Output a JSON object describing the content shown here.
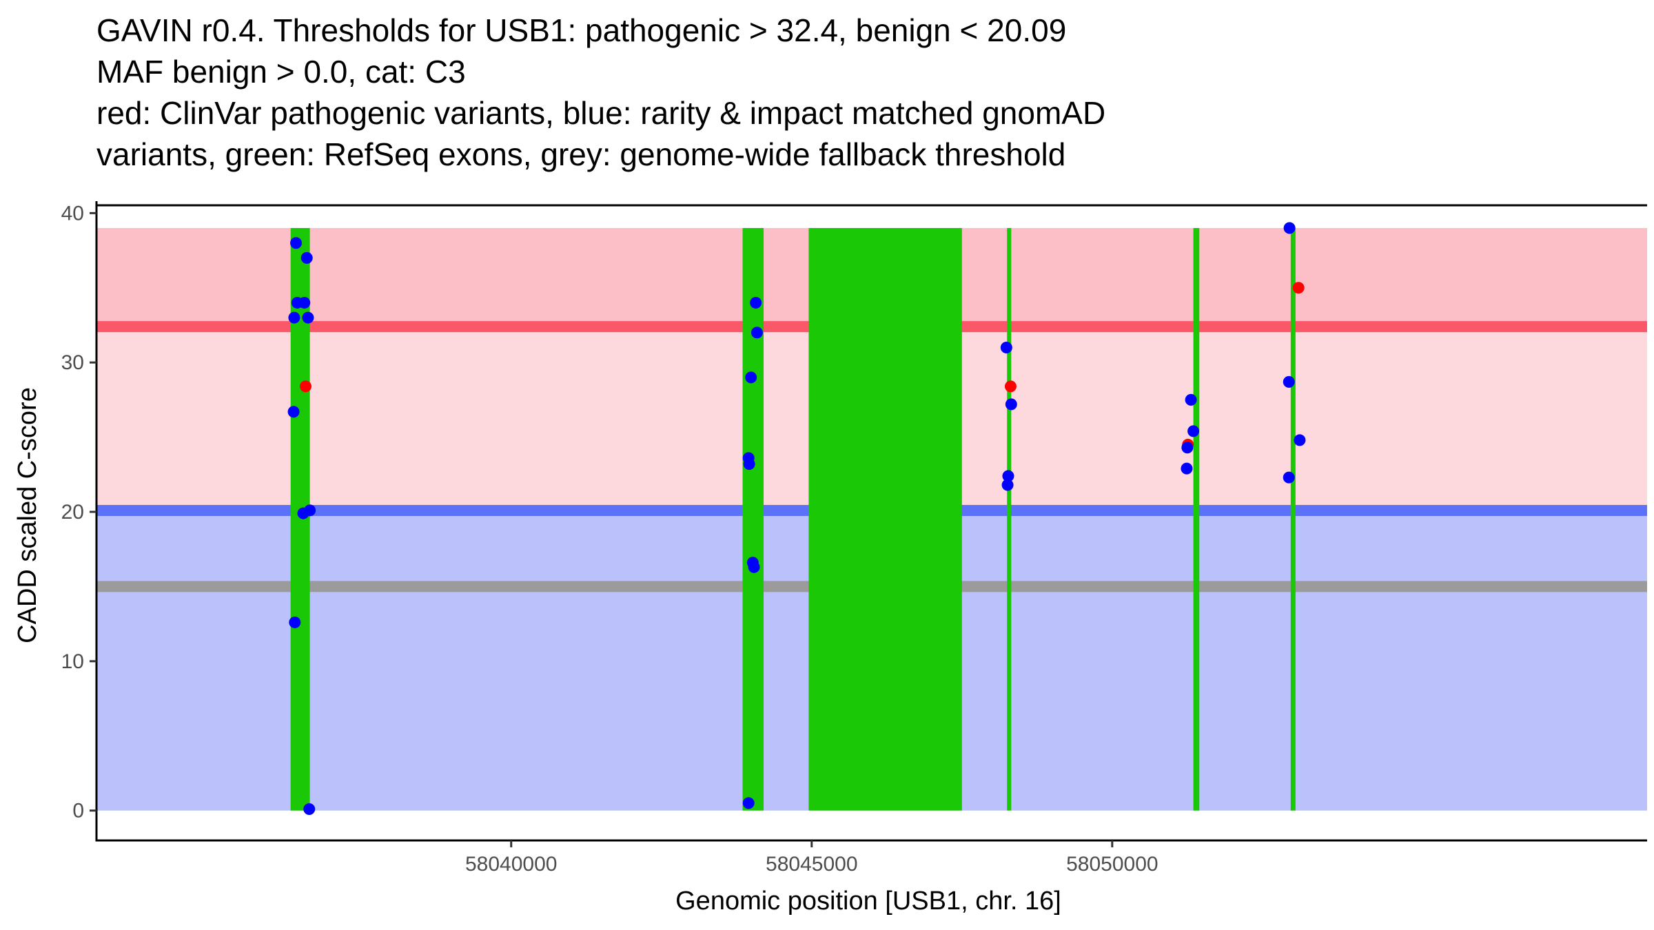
{
  "chart_data": {
    "type": "scatter",
    "title_lines": [
      "GAVIN r0.4. Thresholds for USB1: pathogenic > 32.4, benign < 20.09",
      "MAF benign > 0.0, cat: C3",
      "red: ClinVar pathogenic variants, blue: rarity & impact matched gnomAD",
      "variants, green: RefSeq exons, grey: genome-wide fallback threshold"
    ],
    "xlabel": "Genomic position [USB1, chr. 16]",
    "ylabel": "CADD scaled C-score",
    "xlim": [
      58033100,
      58058900
    ],
    "ylim": [
      -2,
      40.8
    ],
    "x_ticks": [
      58040000,
      58045000,
      58050000
    ],
    "y_ticks": [
      0,
      10,
      20,
      30,
      40
    ],
    "thresholds": {
      "pathogenic": 32.4,
      "benign": 20.09,
      "genome_wide_fallback": 15
    },
    "regions": [
      {
        "name": "pathogenic-zone",
        "y0": 32.4,
        "y1": 39,
        "color": "#fcbfc7"
      },
      {
        "name": "uncertain-zone",
        "y0": 20.09,
        "y1": 32.4,
        "color": "#fdd8dd"
      },
      {
        "name": "benign-zone",
        "y0": 0,
        "y1": 20.09,
        "color": "#bbc1fa"
      }
    ],
    "threshold_lines": [
      {
        "name": "pathogenic-threshold",
        "y": 32.4,
        "color": "#fa5769"
      },
      {
        "name": "benign-threshold",
        "y": 20.09,
        "color": "#5b72f8"
      },
      {
        "name": "fallback-threshold",
        "y": 15,
        "color": "#9b9b9b"
      }
    ],
    "exons": [
      {
        "start": 58036330,
        "end": 58036650
      },
      {
        "start": 58043850,
        "end": 58044200
      },
      {
        "start": 58044950,
        "end": 58047500
      },
      {
        "start": 58048250,
        "end": 58048320
      },
      {
        "start": 58051350,
        "end": 58051450
      },
      {
        "start": 58052970,
        "end": 58053050
      }
    ],
    "exon_color": "#1bc806",
    "series": [
      {
        "name": "ClinVar pathogenic",
        "color": "#ff0000",
        "points": [
          [
            58036580,
            28.4
          ],
          [
            58048310,
            28.4
          ],
          [
            58051260,
            24.5
          ],
          [
            58053100,
            35.0
          ]
        ]
      },
      {
        "name": "gnomAD matched",
        "color": "#0000ff",
        "points": [
          [
            58036420,
            38.0
          ],
          [
            58036600,
            37.0
          ],
          [
            58036440,
            34.0
          ],
          [
            58036560,
            34.0
          ],
          [
            58036390,
            33.0
          ],
          [
            58036620,
            33.0
          ],
          [
            58036380,
            26.7
          ],
          [
            58036540,
            19.9
          ],
          [
            58036650,
            20.1
          ],
          [
            58036400,
            12.6
          ],
          [
            58036640,
            0.1
          ],
          [
            58044070,
            34.0
          ],
          [
            58044090,
            32.0
          ],
          [
            58043990,
            29.0
          ],
          [
            58043950,
            23.6
          ],
          [
            58043960,
            23.2
          ],
          [
            58044020,
            16.6
          ],
          [
            58044040,
            16.3
          ],
          [
            58043950,
            0.5
          ],
          [
            58048240,
            31.0
          ],
          [
            58048320,
            27.2
          ],
          [
            58048270,
            22.4
          ],
          [
            58048260,
            21.8
          ],
          [
            58051310,
            27.5
          ],
          [
            58051350,
            25.4
          ],
          [
            58051250,
            24.3
          ],
          [
            58051240,
            22.9
          ],
          [
            58052950,
            39.0
          ],
          [
            58052940,
            28.7
          ],
          [
            58053120,
            24.8
          ],
          [
            58052940,
            22.3
          ]
        ]
      }
    ]
  }
}
